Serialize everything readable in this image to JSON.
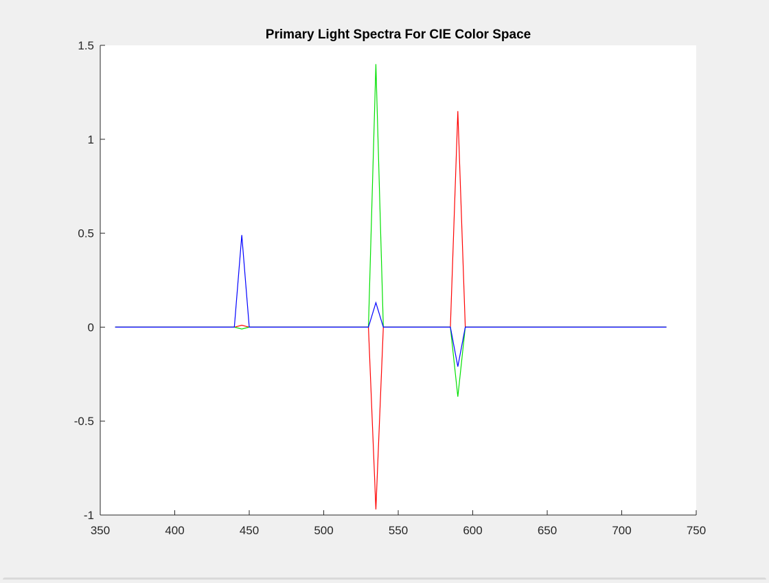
{
  "chart_data": {
    "type": "line",
    "title": "Primary Light Spectra For CIE Color Space",
    "xlabel": "",
    "ylabel": "",
    "xlim": [
      350,
      750
    ],
    "ylim": [
      -1,
      1.5
    ],
    "xticks": [
      350,
      400,
      450,
      500,
      550,
      600,
      650,
      700,
      750
    ],
    "yticks": [
      -1,
      -0.5,
      0,
      0.5,
      1,
      1.5
    ],
    "xtick_labels": [
      "350",
      "400",
      "450",
      "500",
      "550",
      "600",
      "650",
      "700",
      "750"
    ],
    "ytick_labels": [
      "-1",
      "-0.5",
      "0",
      "0.5",
      "1",
      "1.5"
    ],
    "grid": false,
    "series": [
      {
        "color": "#ff0000",
        "x": [
          360,
          440,
          445,
          450,
          530,
          535,
          540,
          585,
          590,
          595,
          730
        ],
        "y": [
          0,
          0,
          0.01,
          0,
          0,
          -0.97,
          0,
          0,
          1.15,
          0,
          0
        ]
      },
      {
        "color": "#00e000",
        "x": [
          360,
          440,
          445,
          450,
          530,
          535,
          540,
          585,
          590,
          595,
          730
        ],
        "y": [
          0,
          0,
          -0.01,
          0,
          0,
          1.4,
          0,
          0,
          -0.37,
          0,
          0
        ]
      },
      {
        "color": "#0000ff",
        "x": [
          360,
          440,
          445,
          450,
          530,
          535,
          540,
          585,
          590,
          595,
          730
        ],
        "y": [
          0,
          0,
          0.49,
          0,
          0,
          0.13,
          0,
          0,
          -0.21,
          0,
          0
        ]
      }
    ]
  }
}
